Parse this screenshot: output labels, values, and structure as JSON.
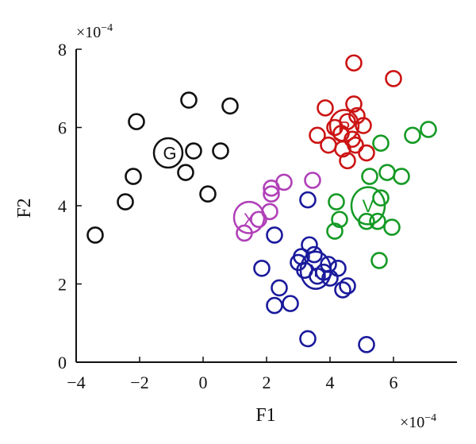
{
  "chart_data": {
    "type": "scatter",
    "title": "",
    "xlabel": "F1",
    "ylabel": "F2",
    "x_exponent_label": "×10",
    "x_exponent_power": "−4",
    "y_exponent_label": "×10",
    "y_exponent_power": "−4",
    "xlim": [
      -4,
      8
    ],
    "ylim": [
      0,
      8
    ],
    "xticks": [
      -4,
      -2,
      0,
      2,
      4,
      6
    ],
    "yticks": [
      0,
      2,
      4,
      6,
      8
    ],
    "grid": false,
    "legend": "none",
    "series": [
      {
        "label": "G",
        "color": "#111111",
        "points": [
          [
            -3.4,
            3.25
          ],
          [
            -2.1,
            6.15
          ],
          [
            -2.2,
            4.75
          ],
          [
            -2.45,
            4.1
          ],
          [
            -0.45,
            6.7
          ],
          [
            -0.3,
            5.4
          ],
          [
            -0.55,
            4.85
          ],
          [
            0.55,
            5.4
          ],
          [
            0.15,
            4.3
          ],
          [
            0.85,
            6.55
          ]
        ],
        "ellipse": {
          "cx": -1.1,
          "cy": 5.35,
          "rx": 0.9,
          "ry": 0.75
        },
        "label_pos": [
          -1.05,
          5.35
        ]
      },
      {
        "label": "X",
        "color": "#b040b8",
        "points": [
          [
            2.15,
            4.45
          ],
          [
            2.15,
            4.3
          ],
          [
            2.55,
            4.6
          ],
          [
            3.45,
            4.65
          ],
          [
            1.75,
            3.65
          ],
          [
            1.3,
            3.3
          ],
          [
            2.1,
            3.85
          ]
        ],
        "ellipse": {
          "cx": 1.45,
          "cy": 3.7,
          "rx": 0.95,
          "ry": 0.8
        },
        "label_pos": [
          1.45,
          3.65
        ]
      },
      {
        "label": "Y",
        "color": "#1a1a9c",
        "points": [
          [
            3.3,
            4.15
          ],
          [
            2.25,
            3.25
          ],
          [
            3.35,
            3.0
          ],
          [
            3.1,
            2.7
          ],
          [
            3.0,
            2.55
          ],
          [
            3.5,
            2.75
          ],
          [
            3.2,
            2.35
          ],
          [
            3.8,
            2.3
          ],
          [
            3.95,
            2.5
          ],
          [
            4.25,
            2.4
          ],
          [
            3.6,
            2.2
          ],
          [
            4.0,
            2.15
          ],
          [
            4.4,
            1.85
          ],
          [
            4.55,
            1.95
          ],
          [
            1.85,
            2.4
          ],
          [
            2.4,
            1.9
          ],
          [
            2.75,
            1.5
          ],
          [
            2.25,
            1.45
          ],
          [
            3.3,
            0.6
          ],
          [
            5.15,
            0.45
          ]
        ],
        "ellipse": {
          "cx": 3.55,
          "cy": 2.35,
          "rx": 0.95,
          "ry": 0.95
        },
        "label_pos": [
          3.55,
          2.35
        ]
      },
      {
        "label": "V",
        "color": "#159a25",
        "points": [
          [
            5.6,
            5.6
          ],
          [
            6.6,
            5.8
          ],
          [
            7.1,
            5.95
          ],
          [
            5.25,
            4.75
          ],
          [
            5.8,
            4.85
          ],
          [
            6.25,
            4.75
          ],
          [
            4.2,
            4.1
          ],
          [
            4.3,
            3.65
          ],
          [
            4.15,
            3.35
          ],
          [
            5.15,
            3.6
          ],
          [
            5.5,
            3.6
          ],
          [
            5.95,
            3.45
          ],
          [
            5.6,
            4.2
          ],
          [
            5.55,
            2.6
          ]
        ],
        "ellipse": {
          "cx": 5.2,
          "cy": 4.0,
          "rx": 1.05,
          "ry": 0.95
        },
        "label_pos": [
          5.2,
          4.0
        ]
      },
      {
        "label": "R",
        "color": "#cc1414",
        "points": [
          [
            4.75,
            7.65
          ],
          [
            6.0,
            7.25
          ],
          [
            3.85,
            6.5
          ],
          [
            4.75,
            6.6
          ],
          [
            4.85,
            6.3
          ],
          [
            4.55,
            6.15
          ],
          [
            5.05,
            6.05
          ],
          [
            4.15,
            6.0
          ],
          [
            3.6,
            5.8
          ],
          [
            4.35,
            5.85
          ],
          [
            4.7,
            5.7
          ],
          [
            3.95,
            5.55
          ],
          [
            4.4,
            5.45
          ],
          [
            4.8,
            5.55
          ],
          [
            5.15,
            5.35
          ],
          [
            4.55,
            5.15
          ]
        ],
        "ellipse": {
          "cx": 4.45,
          "cy": 6.05,
          "rx": 0.9,
          "ry": 0.8
        },
        "label_pos": [
          4.45,
          6.0
        ]
      }
    ]
  }
}
